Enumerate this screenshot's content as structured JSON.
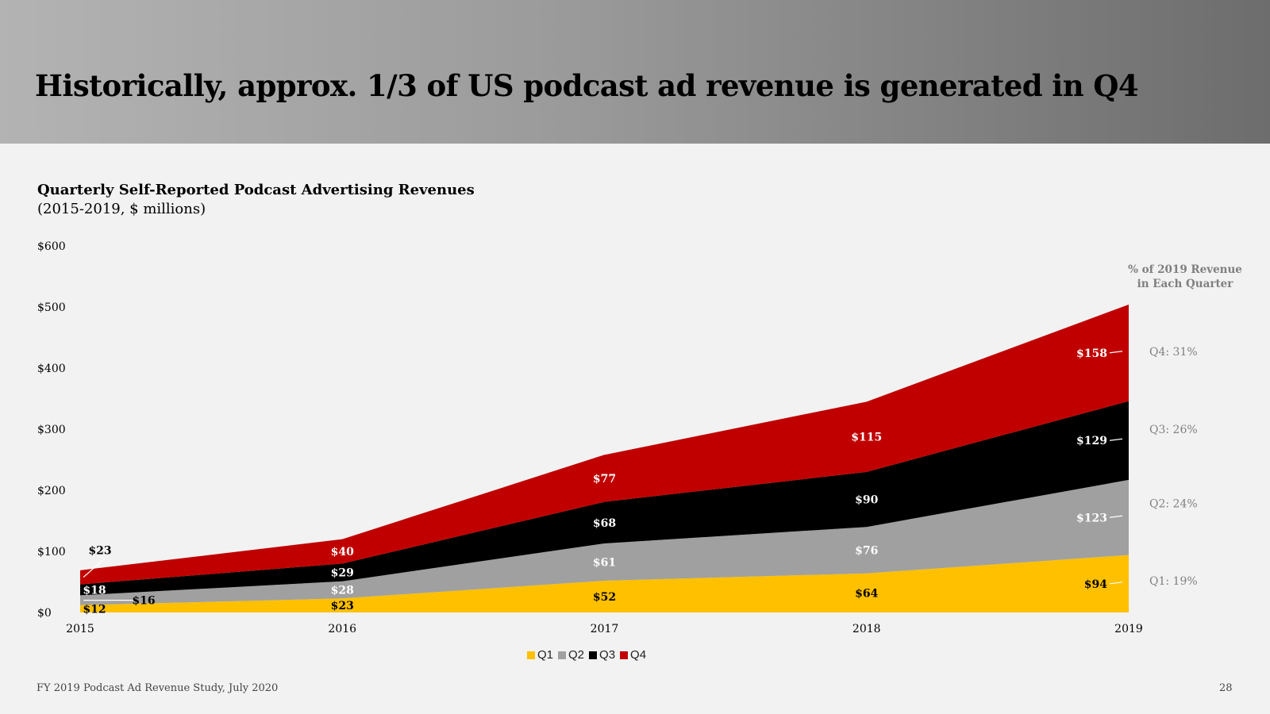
{
  "slide": {
    "title": "Historically, approx. 1/3 of US podcast ad revenue is generated in Q4",
    "footer_source": "FY 2019 Podcast Ad Revenue Study, July 2020",
    "page_number": "28"
  },
  "pct_header": {
    "line1": "% of 2019 Revenue",
    "line2": "in Each Quarter"
  },
  "colors": {
    "Q1": "#ffc000",
    "Q2": "#a0a0a0",
    "Q3": "#000000",
    "Q4": "#c00000"
  },
  "chart_data": {
    "type": "area",
    "stacked": true,
    "title": "Quarterly Self-Reported Podcast Advertising Revenues",
    "subtitle": "(2015-2019, $ millions)",
    "x": [
      "2015",
      "2016",
      "2017",
      "2018",
      "2019"
    ],
    "ylim": [
      0,
      600
    ],
    "yticks": [
      0,
      100,
      200,
      300,
      400,
      500,
      600
    ],
    "ytick_labels": [
      "$0",
      "$100",
      "$200",
      "$300",
      "$400",
      "$500",
      "$600"
    ],
    "series": [
      {
        "name": "Q1",
        "values": [
          12,
          23,
          52,
          64,
          94
        ],
        "labels": [
          "$12",
          "$23",
          "$52",
          "$64",
          "$94"
        ]
      },
      {
        "name": "Q2",
        "values": [
          16,
          28,
          61,
          76,
          123
        ],
        "labels": [
          "$16",
          "$28",
          "$61",
          "$76",
          "$123"
        ]
      },
      {
        "name": "Q3",
        "values": [
          18,
          29,
          68,
          90,
          129
        ],
        "labels": [
          "$18",
          "$29",
          "$68",
          "$90",
          "$129"
        ]
      },
      {
        "name": "Q4",
        "values": [
          23,
          40,
          77,
          115,
          158
        ],
        "labels": [
          "$23",
          "$40",
          "$77",
          "$115",
          "$158"
        ]
      }
    ],
    "legend": [
      "Q1",
      "Q2",
      "Q3",
      "Q4"
    ],
    "percent_labels": [
      {
        "series": "Q4",
        "text": "Q4: 31%"
      },
      {
        "series": "Q3",
        "text": "Q3: 26%"
      },
      {
        "series": "Q2",
        "text": "Q2: 24%"
      },
      {
        "series": "Q1",
        "text": "Q1: 19%"
      }
    ]
  }
}
